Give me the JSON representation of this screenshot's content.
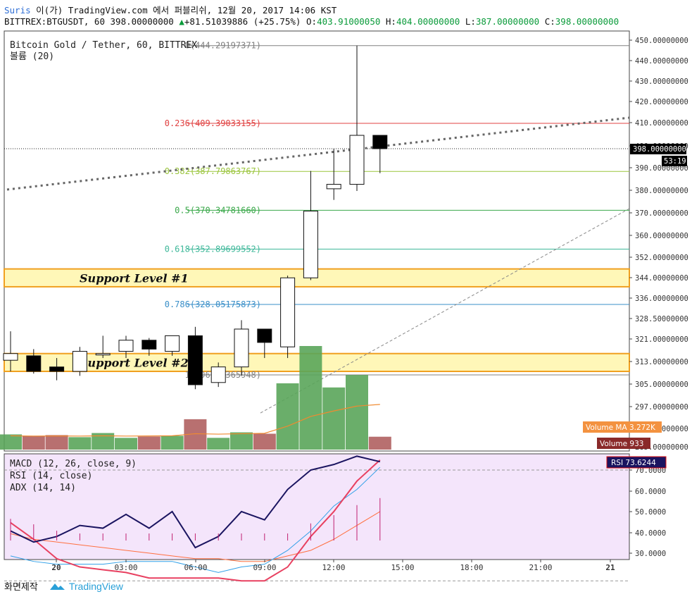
{
  "header": {
    "user": "Suris",
    "line1_rest": " 이(가) TradingView.com 에서 퍼블리쉬, 12월 20, 2017 14:06 KST",
    "symbol": "BITTREX:BTGUSDT, 60 398.00000000",
    "change_arrow": "▲",
    "change": "+81.51039886 (+25.75%)",
    "o_label": "O:",
    "o": "403.91000050",
    "h_label": "H:",
    "h": "404.00000000",
    "l_label": "L:",
    "l": "387.00000000",
    "c_label": "C:",
    "c": "398.00000000"
  },
  "legend": {
    "title": "Bitcoin Gold / Tether, 60, BITTREX",
    "volume": "볼륨 (20)",
    "indicators": [
      "MACD (12, 26, close, 9)",
      "RSI (14, close)",
      "ADX (14, 14)"
    ]
  },
  "price_axis": {
    "ticks": [
      "450.00000000",
      "440.00000000",
      "430.00000000",
      "420.00000000",
      "410.00000000",
      "400.00000000",
      "390.00000000",
      "380.00000000",
      "370.00000000",
      "360.00000000",
      "352.00000000",
      "344.00000000",
      "336.00000000",
      "328.50000000",
      "321.00000000",
      "313.00000000",
      "305.00000000",
      "297.00000000",
      "290.00000000",
      "285.00000000"
    ],
    "last_price": "398.00000000",
    "countdown": "53:19",
    "volume_ma_label": "Volume MA",
    "volume_ma_value": "3.272K",
    "volume_label": "Volume",
    "volume_value": "933"
  },
  "osc_axis": {
    "ticks": [
      "70.0000",
      "60.0000",
      "50.0000",
      "40.0000",
      "30.0000"
    ],
    "rsi_label": "RSI",
    "rsi_value": "73.6244"
  },
  "time_axis": [
    "20",
    "03:00",
    "06:00",
    "09:00",
    "12:00",
    "15:00",
    "18:00",
    "21:00",
    "21"
  ],
  "fib_levels": [
    {
      "label": "0(444.29197371)",
      "price": 444.29,
      "color": "#808080"
    },
    {
      "label": "0.236(409.39033155)",
      "price": 409.39,
      "color": "#e04040"
    },
    {
      "label": "0.382(387.79863767)",
      "price": 387.8,
      "color": "#9bc53d"
    },
    {
      "label": "0.5(370.34781660)",
      "price": 370.35,
      "color": "#3aa84a"
    },
    {
      "label": "0.618(352.89699552)",
      "price": 352.9,
      "color": "#3fb89a"
    },
    {
      "label": "0.786(328.05175873)",
      "price": 328.05,
      "color": "#3a8fc8"
    },
    {
      "label": "1(296.40365948)",
      "price": 296.4,
      "color": "#808080"
    }
  ],
  "annotations": [
    {
      "label": "Support Level #1",
      "top": 344,
      "bottom": 336
    },
    {
      "label": "Support Level #2",
      "top": 306,
      "bottom": 298
    }
  ],
  "chart_data": {
    "type": "candlestick",
    "interval": "60",
    "ylim": [
      285,
      455
    ],
    "candles": [
      {
        "o": 303,
        "h": 316,
        "l": 298,
        "c": 306
      },
      {
        "o": 305,
        "h": 308,
        "l": 297,
        "c": 298
      },
      {
        "o": 300,
        "h": 304,
        "l": 294,
        "c": 298
      },
      {
        "o": 298,
        "h": 309,
        "l": 296,
        "c": 307
      },
      {
        "o": 306,
        "h": 314,
        "l": 304,
        "c": 306
      },
      {
        "o": 307,
        "h": 314,
        "l": 304,
        "c": 312
      },
      {
        "o": 312,
        "h": 313,
        "l": 305,
        "c": 308
      },
      {
        "o": 307,
        "h": 314,
        "l": 305,
        "c": 314
      },
      {
        "o": 314,
        "h": 318,
        "l": 290,
        "c": 292
      },
      {
        "o": 293,
        "h": 302,
        "l": 291,
        "c": 300
      },
      {
        "o": 300,
        "h": 321,
        "l": 296,
        "c": 317
      },
      {
        "o": 317,
        "h": 317,
        "l": 304,
        "c": 311
      },
      {
        "o": 309,
        "h": 341,
        "l": 304,
        "c": 340
      },
      {
        "o": 340,
        "h": 388,
        "l": 339,
        "c": 370
      },
      {
        "o": 380,
        "h": 398,
        "l": 375,
        "c": 382
      },
      {
        "o": 382,
        "h": 444.29,
        "l": 379,
        "c": 404
      },
      {
        "o": 404,
        "h": 404,
        "l": 387,
        "c": 398
      }
    ],
    "volume": [
      1100,
      1000,
      1050,
      900,
      1200,
      850,
      950,
      1000,
      2200,
      850,
      1250,
      1150,
      4800,
      7500,
      4500,
      5400,
      933
    ],
    "volume_ma": [
      1000,
      980,
      990,
      980,
      1000,
      980,
      990,
      1000,
      1150,
      1120,
      1150,
      1180,
      1700,
      2400,
      2800,
      3150,
      3272
    ],
    "macd": [
      48,
      44,
      46,
      50,
      49,
      54,
      49,
      55,
      42,
      46,
      55,
      52,
      63,
      70,
      72,
      75,
      73
    ],
    "rsi": [
      51,
      45,
      38,
      35,
      34,
      33,
      31,
      31,
      31,
      31,
      30,
      30,
      35,
      46,
      55,
      66,
      73.62
    ],
    "adx": [
      39,
      37,
      36,
      36,
      36,
      37,
      37,
      37,
      35,
      33,
      35,
      36,
      41,
      48,
      57,
      63,
      71
    ],
    "adx_slow": [
      47,
      45,
      44,
      43,
      42,
      41,
      40,
      39,
      38,
      38,
      37,
      37,
      39,
      41,
      45,
      50,
      55
    ]
  }
}
